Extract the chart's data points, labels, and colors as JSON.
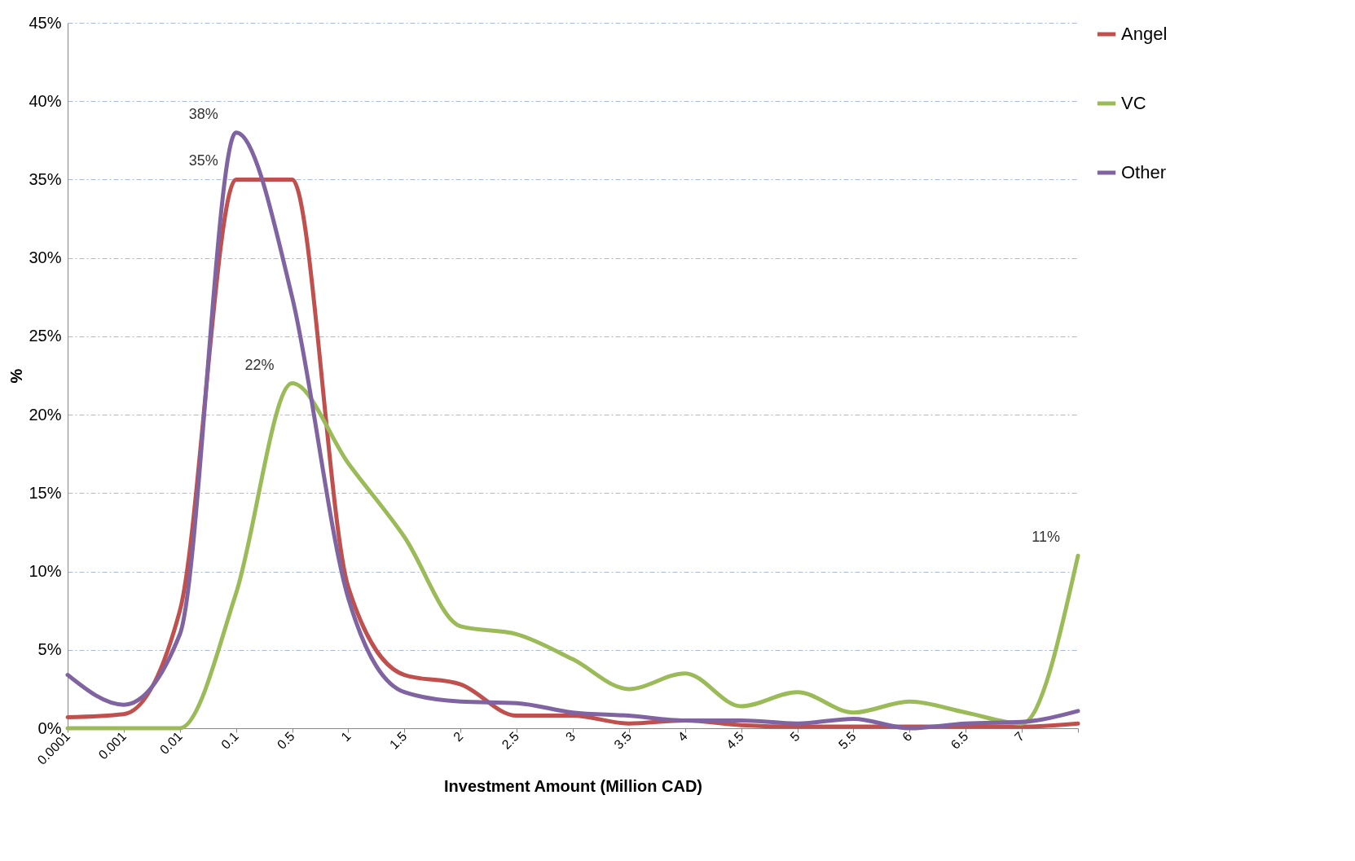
{
  "chart_data": {
    "type": "line",
    "xlabel": "Investment Amount (Million CAD)",
    "ylabel": "%",
    "categories": [
      "0.0001",
      "0.001",
      "0.01",
      "0.1",
      "0.5",
      "1",
      "1.5",
      "2",
      "2.5",
      "3",
      "3.5",
      "4",
      "4.5",
      "5",
      "5.5",
      "6",
      "6.5",
      "7",
      null
    ],
    "series": [
      {
        "name": "Angel",
        "color": "#c0504d",
        "values": [
          0.7,
          0.9,
          7.5,
          35,
          35,
          9,
          3.4,
          2.8,
          0.8,
          0.8,
          0.3,
          0.5,
          0.2,
          0.1,
          0.1,
          0.1,
          0.1,
          0.1,
          0.3
        ],
        "value_labels": [
          null,
          null,
          null,
          "35%",
          null,
          null,
          null,
          null,
          null,
          null,
          null,
          null,
          null,
          null,
          null,
          null,
          null,
          null,
          null
        ]
      },
      {
        "name": "VC",
        "color": "#9bbb59",
        "values": [
          0,
          0,
          0,
          8.6,
          22,
          16.9,
          12.2,
          6.5,
          6.0,
          4.4,
          2.5,
          3.5,
          1.4,
          2.3,
          1.0,
          1.7,
          1.0,
          0.3,
          11
        ],
        "value_labels": [
          null,
          null,
          null,
          null,
          "22%",
          null,
          null,
          null,
          null,
          null,
          null,
          null,
          null,
          null,
          null,
          null,
          null,
          null,
          "11%"
        ]
      },
      {
        "name": "Other",
        "color": "#8064a2",
        "values": [
          3.4,
          1.5,
          6,
          38,
          27.5,
          8.3,
          2.3,
          1.7,
          1.6,
          1.0,
          0.8,
          0.5,
          0.5,
          0.3,
          0.6,
          0,
          0.3,
          0.4,
          1.1
        ],
        "value_labels": [
          null,
          null,
          null,
          "38%",
          null,
          null,
          null,
          null,
          null,
          null,
          null,
          null,
          null,
          null,
          null,
          null,
          null,
          null,
          null
        ]
      }
    ],
    "ylim": [
      0,
      45
    ],
    "yticks": [
      {
        "value": 0,
        "label": "0%"
      },
      {
        "value": 5,
        "label": "5%"
      },
      {
        "value": 10,
        "label": "10%"
      },
      {
        "value": 15,
        "label": "15%"
      },
      {
        "value": 20,
        "label": "20%"
      },
      {
        "value": 25,
        "label": "25%"
      },
      {
        "value": 30,
        "label": "30%"
      },
      {
        "value": 35,
        "label": "35%"
      },
      {
        "value": 40,
        "label": "40%"
      },
      {
        "value": 45,
        "label": "45%"
      }
    ],
    "grid": "y",
    "legend": "right",
    "line_style": "solid",
    "marker": "none"
  }
}
